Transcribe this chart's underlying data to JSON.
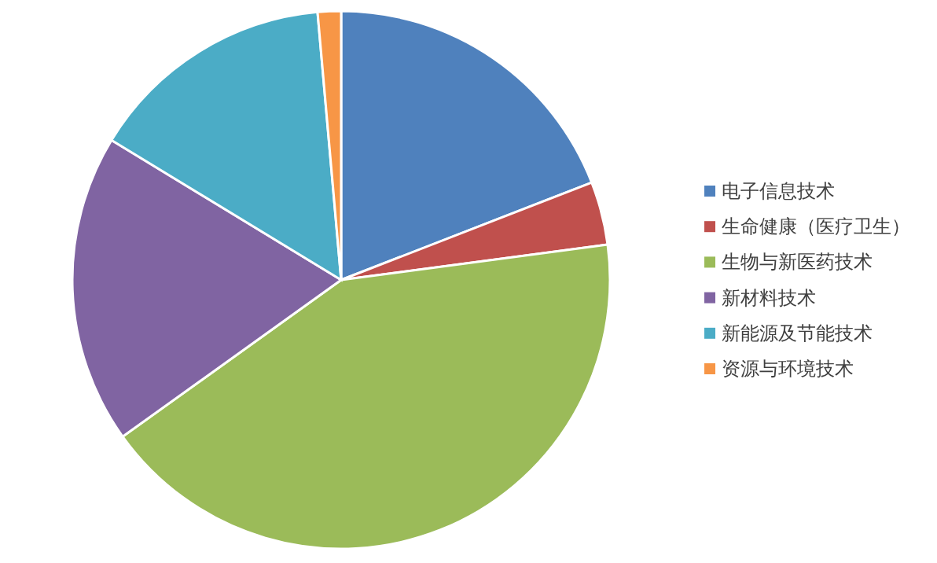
{
  "chart_data": {
    "type": "pie",
    "legend": "right",
    "categories": [
      "电子信息技术",
      "生命健康（医疗卫生）",
      "生物与新医药技术",
      "新材料技术",
      "新能源及节能技术",
      "资源与环境技术"
    ],
    "values": [
      19.1,
      3.8,
      42.2,
      18.6,
      14.9,
      1.4
    ],
    "colors": [
      "#4f81bd",
      "#c0504d",
      "#9bbb59",
      "#8064a2",
      "#4bacc6",
      "#f79646"
    ]
  }
}
